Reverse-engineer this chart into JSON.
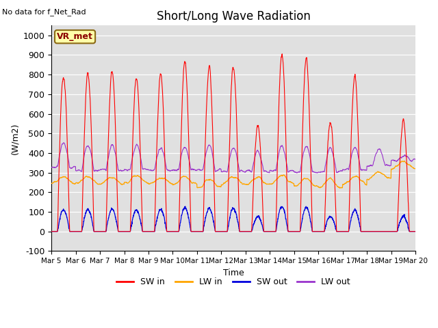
{
  "title": "Short/Long Wave Radiation",
  "xlabel": "Time",
  "ylabel": "(W/m2)",
  "ylim": [
    -100,
    1050
  ],
  "annotation": "No data for f_Net_Rad",
  "legend_label": "VR_met",
  "plot_bg_color": "#e0e0e0",
  "fig_bg_color": "#ffffff",
  "colors": {
    "SW_in": "#ff0000",
    "LW_in": "#ffa500",
    "SW_out": "#0000dd",
    "LW_out": "#9933cc"
  },
  "x_tick_labels": [
    "Mar 5",
    "Mar 6",
    "Mar 7",
    "Mar 8",
    "Mar 9",
    "Mar 10",
    "Mar 11",
    "Mar 12",
    "Mar 13",
    "Mar 14",
    "Mar 15",
    "Mar 16",
    "Mar 17",
    "Mar 18",
    "Mar 19",
    "Mar 20"
  ],
  "yticks": [
    -100,
    0,
    100,
    200,
    300,
    400,
    500,
    600,
    700,
    800,
    900,
    1000
  ]
}
